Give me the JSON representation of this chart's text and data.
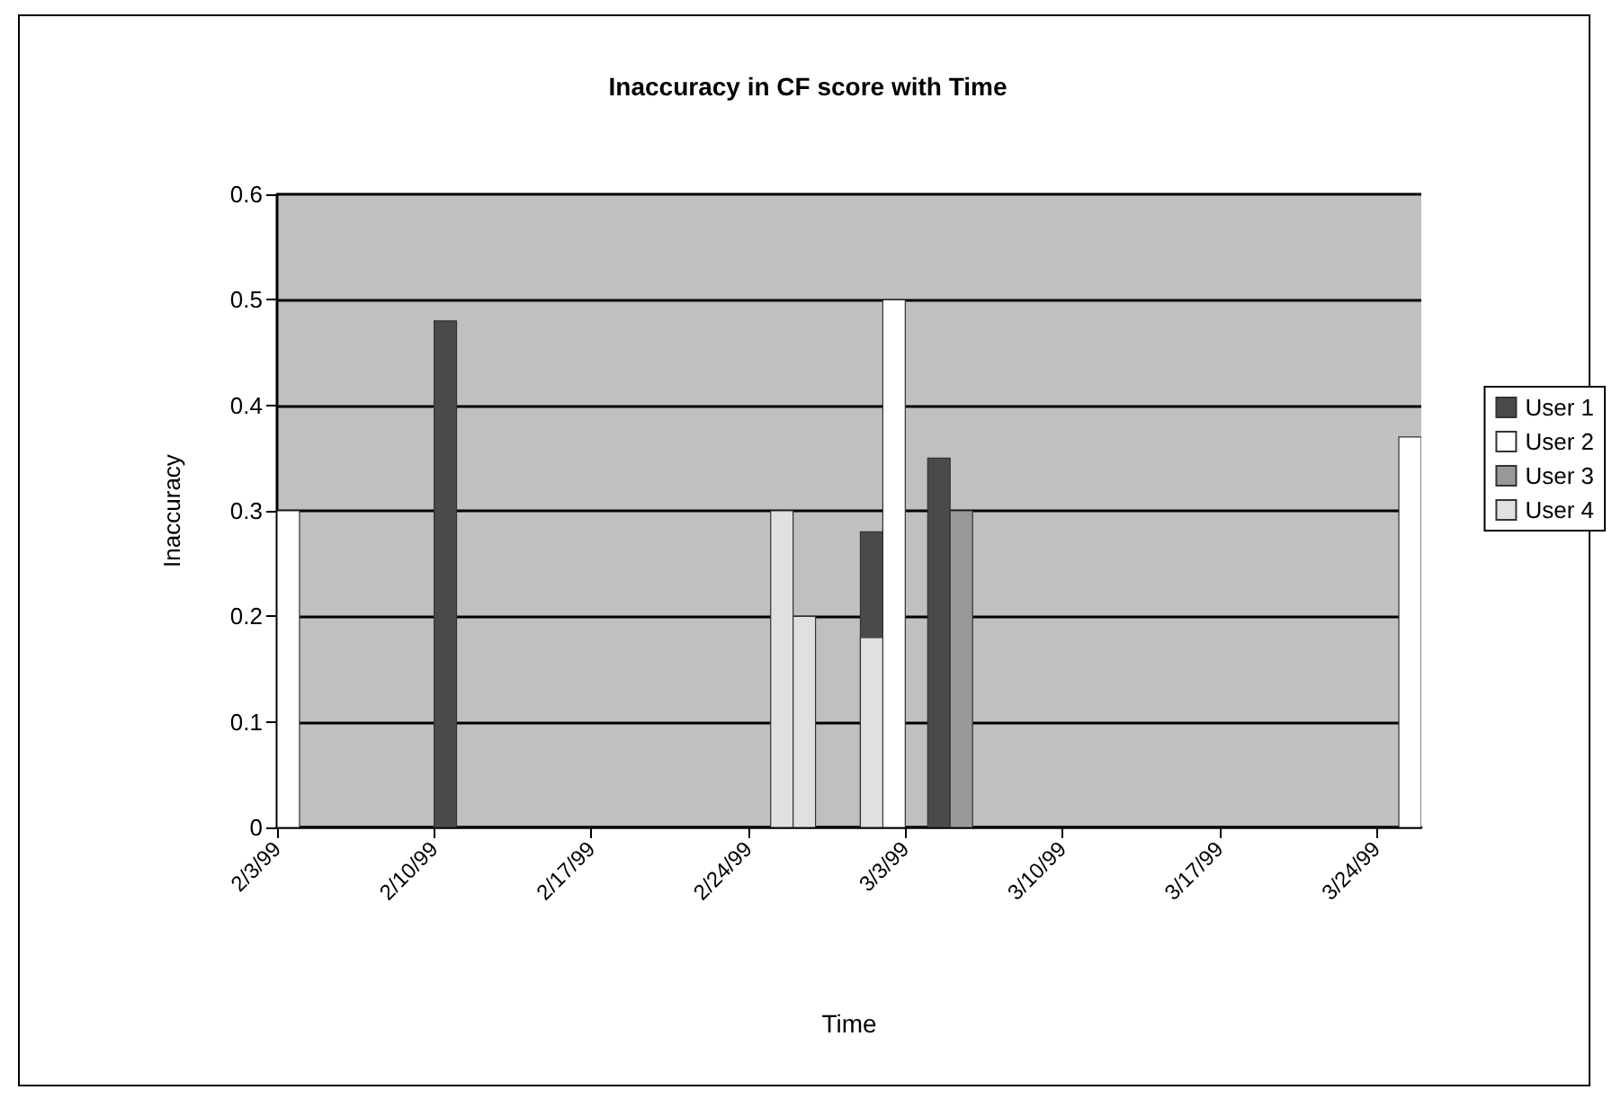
{
  "chart_data": {
    "type": "bar",
    "title": "Inaccuracy in CF score with Time",
    "xlabel": "Time",
    "ylabel": "Inaccuracy",
    "series": [
      {
        "name": "User 1",
        "color": "#4a4a4a",
        "x": [
          "1999-02-10",
          "1999-03-01",
          "1999-03-04"
        ],
        "values": [
          0.48,
          0.28,
          0.35
        ]
      },
      {
        "name": "User 2",
        "color": "#ffffff",
        "x": [
          "1999-02-03",
          "1999-03-02",
          "1999-03-25"
        ],
        "values": [
          0.3,
          0.5,
          0.37
        ]
      },
      {
        "name": "User 3",
        "color": "#999999",
        "x": [
          "1999-03-05"
        ],
        "values": [
          0.3
        ]
      },
      {
        "name": "User 4",
        "color": "#e0e0e0",
        "x": [
          "1999-02-25",
          "1999-02-26",
          "1999-03-01"
        ],
        "values": [
          0.3,
          0.2,
          0.18
        ]
      }
    ],
    "xlim": [
      "1999-02-03",
      "1999-03-26"
    ],
    "xticks": [
      {
        "value": "1999-02-03",
        "label": "2/3/99"
      },
      {
        "value": "1999-02-10",
        "label": "2/10/99"
      },
      {
        "value": "1999-02-17",
        "label": "2/17/99"
      },
      {
        "value": "1999-02-24",
        "label": "2/24/99"
      },
      {
        "value": "1999-03-03",
        "label": "3/3/99"
      },
      {
        "value": "1999-03-10",
        "label": "3/10/99"
      },
      {
        "value": "1999-03-17",
        "label": "3/17/99"
      },
      {
        "value": "1999-03-24",
        "label": "3/24/99"
      }
    ],
    "ylim": [
      0,
      0.6
    ],
    "yticks": [
      0,
      0.1,
      0.2,
      0.3,
      0.4,
      0.5,
      0.6
    ],
    "grid": "y",
    "legend": "right"
  }
}
